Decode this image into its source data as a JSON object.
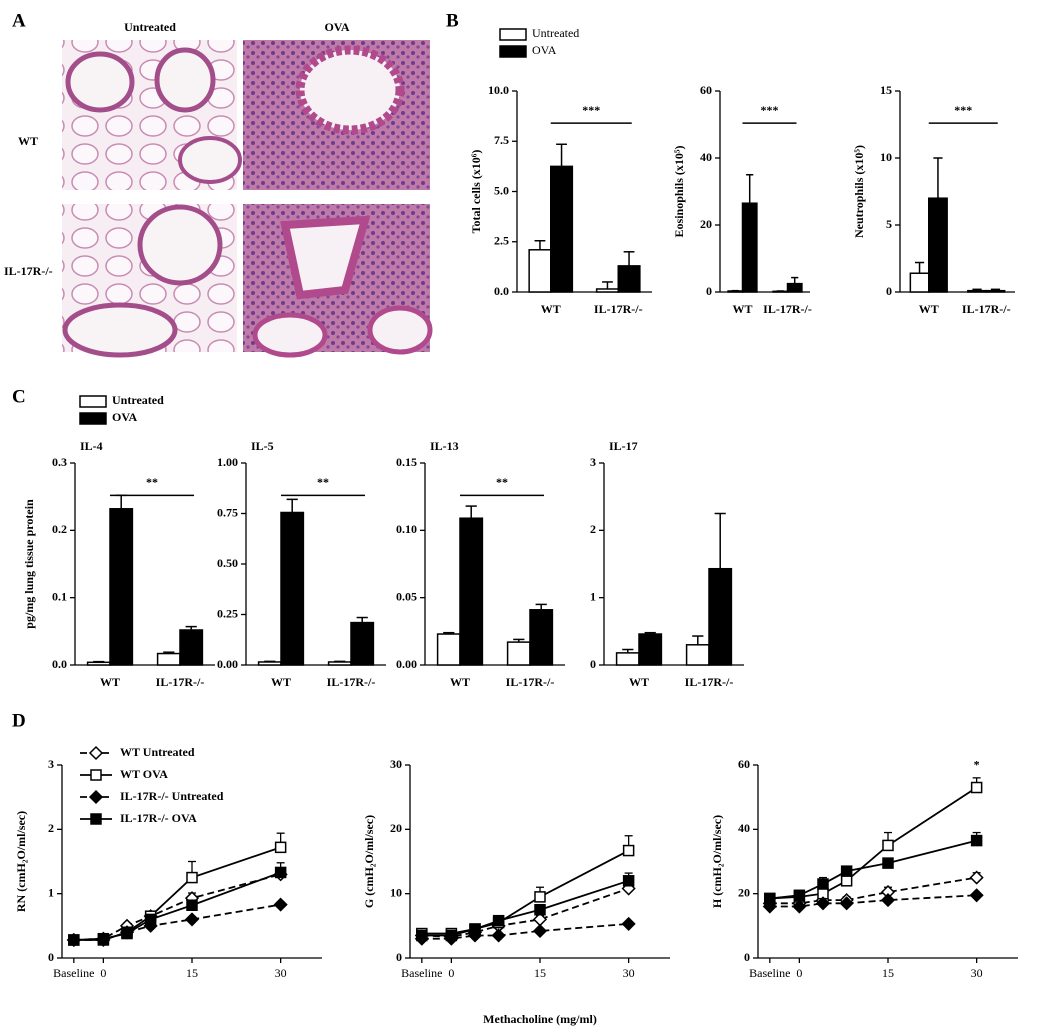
{
  "panel_labels": [
    "A",
    "B",
    "C",
    "D"
  ],
  "panel_a": {
    "col_labels": [
      "Untreated",
      "OVA"
    ],
    "row_labels": [
      "WT",
      "IL-17R-/-"
    ]
  },
  "chart_data": [
    {
      "type": "bar",
      "y_label": "Total cells (x10⁶)",
      "categories": [
        "WT",
        "IL-17R-/-"
      ],
      "series": [
        {
          "name": "Untreated",
          "color": "#ffffff",
          "values": [
            2.1,
            0.15
          ],
          "errors": [
            0.45,
            0.35
          ]
        },
        {
          "name": "OVA",
          "color": "#000000",
          "values": [
            6.25,
            1.3
          ],
          "errors": [
            1.1,
            0.7
          ]
        }
      ],
      "ylim": [
        0,
        10
      ],
      "yticks": [
        {
          "value": 0,
          "label": "0.0"
        },
        2.5,
        {
          "value": 5,
          "label": "5.0"
        },
        7.5,
        {
          "value": 10,
          "label": "10.0"
        }
      ],
      "annotation": "***"
    },
    {
      "type": "bar",
      "y_label": "Eosinophils (x10⁵)",
      "categories": [
        "WT",
        "IL-17R-/-"
      ],
      "series": [
        {
          "color": "#ffffff",
          "values": [
            0.3,
            0.2
          ],
          "errors": [
            0.1,
            0.1
          ]
        },
        {
          "color": "#000000",
          "values": [
            26.5,
            2.5
          ],
          "errors": [
            8.5,
            1.8
          ]
        }
      ],
      "ylim": [
        0,
        60
      ],
      "yticks": [
        0,
        20,
        40,
        60
      ],
      "annotation": "***"
    },
    {
      "type": "bar",
      "y_label": "Neutrophils (x10⁵)",
      "categories": [
        "WT",
        "IL-17R-/-"
      ],
      "series": [
        {
          "color": "#ffffff",
          "values": [
            1.4,
            0.1
          ],
          "errors": [
            0.8,
            0.1
          ]
        },
        {
          "color": "#000000",
          "values": [
            7.0,
            0.1
          ],
          "errors": [
            3.0,
            0.1
          ]
        }
      ],
      "ylim": [
        0,
        15
      ],
      "yticks": [
        0,
        5,
        10,
        15
      ],
      "annotation": "***"
    },
    {
      "type": "bar",
      "title": "IL-4",
      "y_label": "pg/mg lung tissue protein",
      "categories": [
        "WT",
        "IL-17R-/-"
      ],
      "series": [
        {
          "name": "Untreated",
          "color": "#ffffff",
          "values": [
            0.004,
            0.017
          ],
          "errors": [
            0.001,
            0.002
          ]
        },
        {
          "name": "OVA",
          "color": "#000000",
          "values": [
            0.232,
            0.052
          ],
          "errors": [
            0.02,
            0.005
          ]
        }
      ],
      "ylim": [
        0,
        0.3
      ],
      "yticks": [
        {
          "value": 0,
          "label": "0.0"
        },
        0.1,
        0.2,
        0.3
      ],
      "annotation": "**"
    },
    {
      "type": "bar",
      "title": "IL-5",
      "categories": [
        "WT",
        "IL-17R-/-"
      ],
      "series": [
        {
          "color": "#ffffff",
          "values": [
            0.015,
            0.015
          ],
          "errors": [
            0.003,
            0.003
          ]
        },
        {
          "color": "#000000",
          "values": [
            0.755,
            0.21
          ],
          "errors": [
            0.065,
            0.025
          ]
        }
      ],
      "ylim": [
        0,
        1
      ],
      "yticks": [
        {
          "value": 0,
          "label": "0.00"
        },
        0.25,
        {
          "value": 0.5,
          "label": "0.50"
        },
        0.75,
        {
          "value": 1,
          "label": "1.00"
        }
      ],
      "annotation": "**"
    },
    {
      "type": "bar",
      "title": "IL-13",
      "categories": [
        "WT",
        "IL-17R-/-"
      ],
      "series": [
        {
          "color": "#ffffff",
          "values": [
            0.023,
            0.017
          ],
          "errors": [
            0.001,
            0.002
          ]
        },
        {
          "color": "#000000",
          "values": [
            0.109,
            0.041
          ],
          "errors": [
            0.009,
            0.004
          ]
        }
      ],
      "ylim": [
        0,
        0.15
      ],
      "yticks": [
        {
          "value": 0,
          "label": "0.00"
        },
        0.05,
        {
          "value": 0.1,
          "label": "0.10"
        },
        0.15
      ],
      "annotation": "**"
    },
    {
      "type": "bar",
      "title": "IL-17",
      "categories": [
        "WT",
        "IL-17R-/-"
      ],
      "series": [
        {
          "color": "#ffffff",
          "values": [
            0.18,
            0.3
          ],
          "errors": [
            0.05,
            0.13
          ]
        },
        {
          "color": "#000000",
          "values": [
            0.46,
            1.43
          ],
          "errors": [
            0.02,
            0.82
          ]
        }
      ],
      "ylim": [
        0,
        3
      ],
      "yticks": [
        0,
        1,
        2,
        3
      ]
    },
    {
      "type": "line",
      "y_label": "RN (cmH₂O/ml/sec)",
      "x": [
        -5,
        0,
        4,
        8,
        15,
        30
      ],
      "xlim": [
        -7,
        37
      ],
      "xticks": [
        {
          "value": -5,
          "label": "Baseline"
        },
        0,
        15,
        30
      ],
      "ylim": [
        0,
        3
      ],
      "yticks": [
        0,
        1,
        2,
        3
      ],
      "series": [
        {
          "name": "WT Untreated",
          "color": "#000000",
          "marker": "diamond-open",
          "dashed": true,
          "values": [
            0.28,
            0.3,
            0.5,
            0.65,
            0.93,
            1.3
          ],
          "errors": [
            0.02,
            0.02,
            0.04,
            0.05,
            0.08,
            0.1
          ]
        },
        {
          "name": "WT OVA",
          "color": "#000000",
          "marker": "square-open",
          "dashed": false,
          "values": [
            0.28,
            0.28,
            0.4,
            0.65,
            1.25,
            1.72
          ],
          "errors": [
            0.02,
            0.02,
            0.05,
            0.06,
            0.25,
            0.22
          ]
        },
        {
          "name": "IL-17R-/- Untreated",
          "color": "#000000",
          "marker": "diamond",
          "dashed": true,
          "values": [
            0.28,
            0.28,
            0.4,
            0.5,
            0.6,
            0.83
          ],
          "errors": [
            0.02,
            0.02,
            0.03,
            0.03,
            0.03,
            0.04
          ]
        },
        {
          "name": "IL-17R-/- OVA",
          "color": "#000000",
          "marker": "square",
          "dashed": false,
          "values": [
            0.28,
            0.3,
            0.38,
            0.6,
            0.82,
            1.33
          ],
          "errors": [
            0.02,
            0.02,
            0.04,
            0.05,
            0.08,
            0.15
          ]
        }
      ]
    },
    {
      "type": "line",
      "y_label": "G (cmH₂O/ml/sec)",
      "x_label": "Methacholine (mg/ml)",
      "x": [
        -5,
        0,
        4,
        8,
        15,
        30
      ],
      "xlim": [
        -7,
        37
      ],
      "xticks": [
        {
          "value": -5,
          "label": "Baseline"
        },
        0,
        15,
        30
      ],
      "ylim": [
        0,
        30
      ],
      "yticks": [
        0,
        10,
        20,
        30
      ],
      "series": [
        {
          "color": "#000000",
          "marker": "diamond-open",
          "dashed": true,
          "values": [
            3.5,
            3.3,
            4,
            5,
            6,
            10.8
          ],
          "errors": [
            0.5,
            0.5,
            0.5,
            0.5,
            0.5,
            1
          ]
        },
        {
          "color": "#000000",
          "marker": "square-open",
          "dashed": false,
          "values": [
            3.8,
            3.8,
            4.5,
            5.5,
            9.5,
            16.7
          ],
          "errors": [
            0.5,
            0.5,
            0.5,
            0.7,
            1.5,
            2.3
          ]
        },
        {
          "color": "#000000",
          "marker": "diamond",
          "dashed": true,
          "values": [
            3,
            3,
            3.5,
            3.5,
            4.2,
            5.3
          ],
          "errors": [
            0.3,
            0.3,
            0.3,
            0.3,
            0.3,
            0.3
          ]
        },
        {
          "color": "#000000",
          "marker": "square",
          "dashed": false,
          "values": [
            3.5,
            3.5,
            4.5,
            5.8,
            7.5,
            12
          ],
          "errors": [
            0.4,
            0.4,
            0.5,
            0.6,
            0.8,
            1.2
          ]
        }
      ]
    },
    {
      "type": "line",
      "y_label": "H (cmH₂O/ml/sec)",
      "x": [
        -5,
        0,
        4,
        8,
        15,
        30
      ],
      "xlim": [
        -7,
        37
      ],
      "xticks": [
        {
          "value": -5,
          "label": "Baseline"
        },
        0,
        15,
        30
      ],
      "ylim": [
        0,
        60
      ],
      "yticks": [
        0,
        20,
        40,
        60
      ],
      "annotation": "*",
      "series": [
        {
          "color": "#000000",
          "marker": "diamond-open",
          "dashed": true,
          "values": [
            17,
            17,
            18,
            18,
            20.5,
            25
          ],
          "errors": [
            1,
            1,
            1,
            1,
            1.5,
            1.5
          ]
        },
        {
          "color": "#000000",
          "marker": "square-open",
          "dashed": false,
          "values": [
            18.5,
            19,
            20,
            24,
            35,
            53
          ],
          "errors": [
            1,
            1,
            2,
            2,
            4,
            3
          ]
        },
        {
          "color": "#000000",
          "marker": "diamond",
          "dashed": true,
          "values": [
            16,
            16,
            17,
            17,
            18,
            19.5
          ],
          "errors": [
            0.5,
            0.5,
            0.5,
            0.5,
            0.5,
            0.5
          ]
        },
        {
          "color": "#000000",
          "marker": "square",
          "dashed": false,
          "values": [
            18.5,
            19.5,
            23,
            27,
            29.5,
            36.5
          ],
          "errors": [
            1,
            1,
            2,
            1.5,
            1.5,
            2.5
          ]
        }
      ]
    }
  ]
}
